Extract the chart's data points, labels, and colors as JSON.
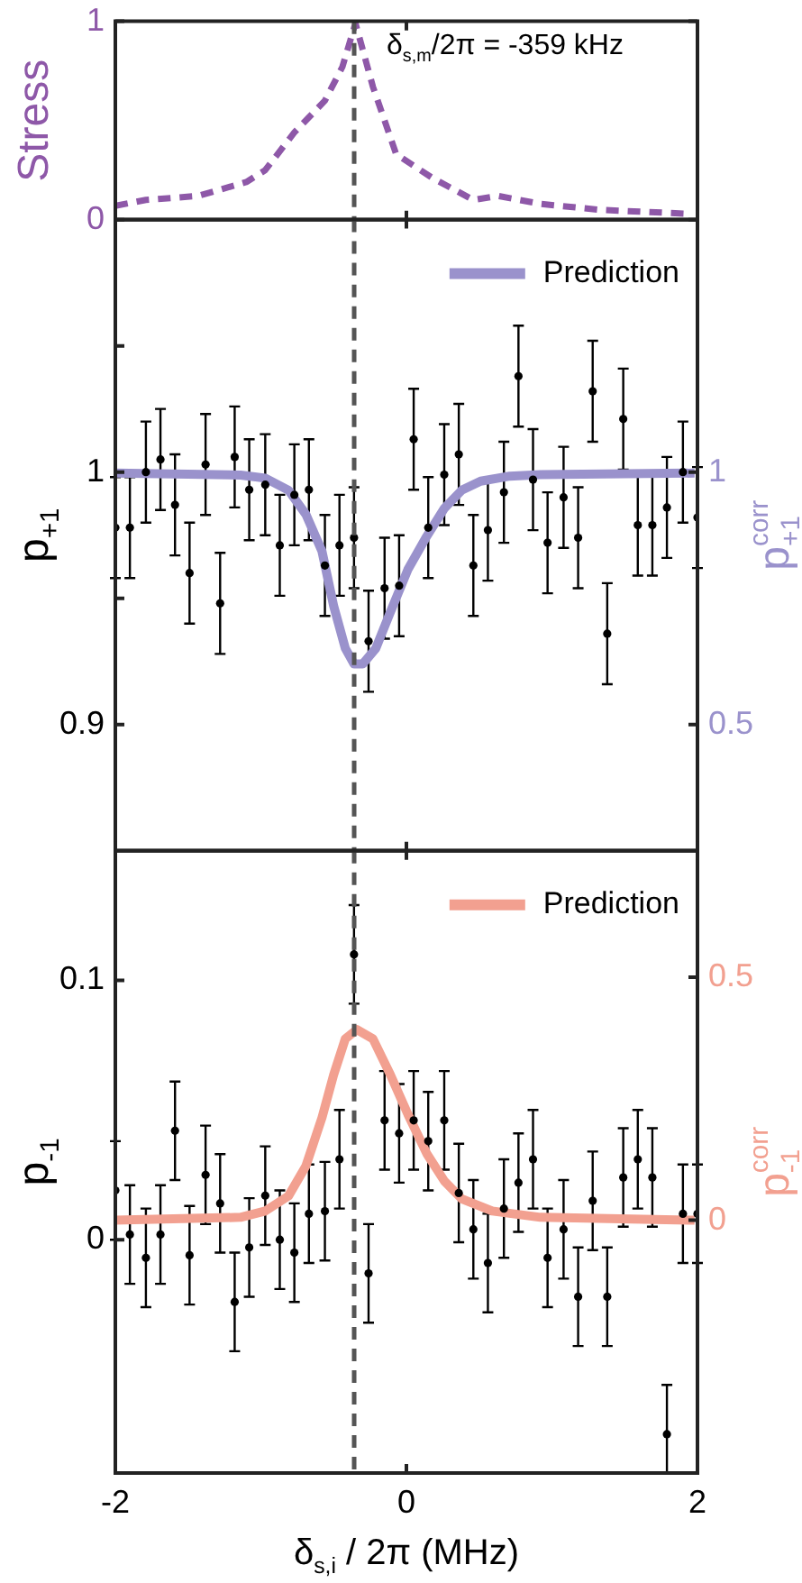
{
  "chart_data": [
    {
      "type": "line",
      "ylabel": "Stress",
      "xlim": [
        -2,
        2
      ],
      "xticks": [
        -2,
        0,
        2
      ],
      "ylim": [
        0,
        1
      ],
      "yticks": [
        0,
        1
      ],
      "tick_labels": "y",
      "grid": false,
      "legend": false,
      "ref_lines": [
        {
          "axis": "x",
          "value": -0.359,
          "label": "δ$_{s,m}$/2π = -359 kHz",
          "color": "#555555",
          "line_style": "dashed"
        }
      ],
      "series": [
        {
          "color": "#8e58a8",
          "line_style": "dashed",
          "marker": "none",
          "x": [
            -2,
            -1.79,
            -1.43,
            -1.1,
            -0.97,
            -0.77,
            -0.56,
            -0.44,
            -0.35,
            -0.23,
            -0.07,
            0.18,
            0.46,
            0.63,
            0.92,
            1.33,
            1.94
          ],
          "values": [
            0.07,
            0.1,
            0.12,
            0.19,
            0.25,
            0.44,
            0.6,
            0.77,
            0.99,
            0.67,
            0.33,
            0.21,
            0.1,
            0.12,
            0.08,
            0.05,
            0.03
          ]
        }
      ]
    },
    {
      "type": "scatter",
      "ylabel": "p$_{+1}$",
      "y2label": "p$^{corr}$$_{+1}$",
      "xlim": [
        -2,
        2
      ],
      "xticks": [
        -2,
        0,
        2
      ],
      "ylim": [
        0.85,
        1.1
      ],
      "yticks": [
        {
          "value": 0.9,
          "label": "0.9"
        },
        {
          "value": 0.95,
          "label": null
        },
        1,
        {
          "value": 1.05,
          "label": null
        }
      ],
      "y2lim": [
        0.25,
        1.5
      ],
      "y2ticks": [
        0.5,
        1
      ],
      "tick_labels": "y",
      "grid": false,
      "legend": "top right",
      "ref_lines": [
        {
          "axis": "x",
          "value": -0.359,
          "color": "#555555",
          "line_style": "dashed"
        }
      ],
      "series": [
        {
          "color": "#000000",
          "marker": "circle",
          "x": [
            -2,
            -1.9,
            -1.79,
            -1.69,
            -1.59,
            -1.49,
            -1.38,
            -1.28,
            -1.18,
            -1.08,
            -0.97,
            -0.87,
            -0.77,
            -0.67,
            -0.56,
            -0.46,
            -0.36,
            -0.26,
            -0.15,
            -0.05,
            0.05,
            0.15,
            0.26,
            0.36,
            0.46,
            0.56,
            0.67,
            0.77,
            0.87,
            0.97,
            1.08,
            1.18,
            1.28,
            1.38,
            1.49,
            1.59,
            1.69,
            1.79,
            1.9,
            2
          ],
          "values": [
            0.978,
            0.978,
            1.0,
            1.005,
            0.987,
            0.96,
            1.003,
            0.948,
            1.006,
            0.993,
            0.995,
            0.971,
            0.991,
            0.993,
            0.963,
            0.971,
            0.974,
            0.933,
            0.954,
            0.955,
            1.013,
            0.978,
            0.999,
            1.007,
            0.963,
            0.977,
            0.992,
            1.038,
            0.997,
            0.972,
            0.99,
            0.974,
            1.032,
            0.936,
            1.021,
            0.979,
            0.979,
            0.986,
            1.0,
            0.982
          ],
          "errors": [
            0.02,
            0.02,
            0.02,
            0.02,
            0.02,
            0.02,
            0.02,
            0.02,
            0.02,
            0.02,
            0.02,
            0.02,
            0.02,
            0.02,
            0.02,
            0.02,
            0.02,
            0.02,
            0.02,
            0.02,
            0.02,
            0.02,
            0.02,
            0.02,
            0.02,
            0.02,
            0.02,
            0.02,
            0.02,
            0.02,
            0.02,
            0.02,
            0.02,
            0.02,
            0.02,
            0.02,
            0.02,
            0.02,
            0.02,
            0.02
          ]
        },
        {
          "type": "line",
          "name": "Prediction",
          "axis": "y2",
          "color": "#9a92cc",
          "line_style": "solid",
          "marker": "none",
          "x": [
            -2,
            -1.14,
            -0.97,
            -0.81,
            -0.69,
            -0.58,
            -0.5,
            -0.42,
            -0.36,
            -0.3,
            -0.21,
            -0.11,
            0.01,
            0.14,
            0.26,
            0.38,
            0.51,
            0.71,
            0.92,
            1.98
          ],
          "values": [
            0.998,
            0.994,
            0.988,
            0.964,
            0.916,
            0.843,
            0.735,
            0.651,
            0.62,
            0.62,
            0.651,
            0.723,
            0.807,
            0.873,
            0.928,
            0.964,
            0.982,
            0.992,
            0.995,
            0.998
          ]
        }
      ]
    },
    {
      "type": "scatter",
      "ylabel": "p$_{-1}$",
      "y2label": "p$^{corr}$$_{-1}$",
      "xlabel": "δ$_{s,i}$ / 2π (MHz)",
      "xlim": [
        -2,
        2
      ],
      "xticks": [
        -2,
        0,
        2
      ],
      "ylim": [
        -0.09,
        0.15
      ],
      "yticks": [
        0,
        0.1
      ],
      "y2lim": [
        -0.52,
        0.76
      ],
      "y2ticks": [
        0,
        0.5
      ],
      "grid": false,
      "legend": "top right",
      "ref_lines": [
        {
          "axis": "x",
          "value": -0.359,
          "color": "#555555",
          "line_style": "dashed"
        }
      ],
      "series": [
        {
          "color": "#000000",
          "marker": "circle",
          "x": [
            -2,
            -1.9,
            -1.79,
            -1.69,
            -1.59,
            -1.49,
            -1.38,
            -1.28,
            -1.18,
            -1.08,
            -0.97,
            -0.87,
            -0.77,
            -0.67,
            -0.56,
            -0.46,
            -0.36,
            -0.26,
            -0.15,
            -0.05,
            0.05,
            0.15,
            0.26,
            0.36,
            0.46,
            0.56,
            0.67,
            0.77,
            0.87,
            0.97,
            1.08,
            1.18,
            1.28,
            1.38,
            1.49,
            1.59,
            1.69,
            1.79,
            1.9,
            2
          ],
          "values": [
            0.019,
            0.002,
            -0.007,
            0.002,
            0.042,
            -0.006,
            0.025,
            0.014,
            -0.024,
            -0.003,
            0.017,
            0.0,
            -0.005,
            0.01,
            0.011,
            0.031,
            0.11,
            -0.013,
            0.046,
            0.041,
            0.046,
            0.038,
            0.046,
            0.018,
            0.004,
            -0.009,
            0.012,
            0.022,
            0.031,
            -0.007,
            0.004,
            -0.022,
            0.015,
            -0.022,
            0.024,
            0.031,
            0.024,
            -0.075,
            0.01,
            0.01
          ],
          "errors": [
            0.019,
            0.019,
            0.019,
            0.019,
            0.019,
            0.019,
            0.019,
            0.019,
            0.019,
            0.019,
            0.019,
            0.019,
            0.019,
            0.019,
            0.019,
            0.019,
            0.019,
            0.019,
            0.019,
            0.019,
            0.019,
            0.019,
            0.019,
            0.019,
            0.019,
            0.019,
            0.019,
            0.019,
            0.019,
            0.019,
            0.019,
            0.019,
            0.019,
            0.019,
            0.019,
            0.019,
            0.019,
            [
              -0.09,
              -0.056
            ],
            0.019,
            0.019
          ]
        },
        {
          "type": "line",
          "name": "Prediction",
          "axis": "y2",
          "color": "#f2a090",
          "line_style": "solid",
          "marker": "none",
          "x": [
            -2,
            -1.14,
            -0.97,
            -0.81,
            -0.69,
            -0.58,
            -0.5,
            -0.42,
            -0.34,
            -0.23,
            -0.11,
            0.01,
            0.14,
            0.26,
            0.38,
            0.59,
            0.92,
            1.98
          ],
          "values": [
            0,
            0.006,
            0.019,
            0.05,
            0.112,
            0.211,
            0.299,
            0.373,
            0.392,
            0.373,
            0.299,
            0.218,
            0.137,
            0.081,
            0.044,
            0.019,
            0.006,
            0
          ]
        }
      ]
    }
  ]
}
